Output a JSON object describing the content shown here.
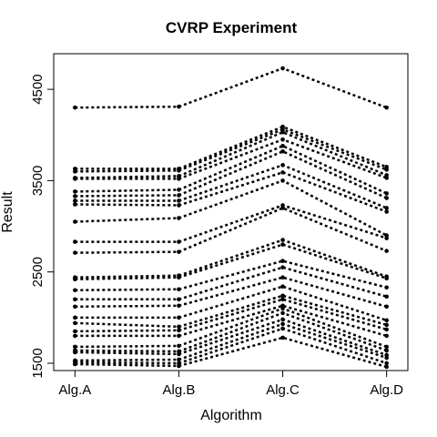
{
  "chart_data": {
    "type": "line",
    "title": "CVRP Experiment",
    "xlabel": "Algorithm",
    "ylabel": "Result",
    "categories": [
      "Alg.A",
      "Alg.B",
      "Alg.C",
      "Alg.D"
    ],
    "yticks": [
      1500,
      2500,
      3500,
      4500
    ],
    "ylim": [
      1420,
      4890
    ],
    "grid": false,
    "legend": "none",
    "series": [
      {
        "values": [
          4300,
          4310,
          4730,
          4300
        ]
      },
      {
        "values": [
          3630,
          3630,
          4090,
          3650
        ]
      },
      {
        "values": [
          3600,
          3610,
          4060,
          3620
        ]
      },
      {
        "values": [
          3530,
          3550,
          4030,
          3560
        ]
      },
      {
        "values": [
          3520,
          3520,
          3950,
          3530
        ]
      },
      {
        "values": [
          3380,
          3400,
          3880,
          3360
        ]
      },
      {
        "values": [
          3330,
          3340,
          3820,
          3310
        ]
      },
      {
        "values": [
          3280,
          3280,
          3670,
          3200
        ]
      },
      {
        "values": [
          3240,
          3230,
          3590,
          3160
        ]
      },
      {
        "values": [
          3050,
          3090,
          3500,
          2900
        ]
      },
      {
        "values": [
          2830,
          2830,
          3230,
          2870
        ]
      },
      {
        "values": [
          2710,
          2720,
          3200,
          2730
        ]
      },
      {
        "values": [
          2440,
          2460,
          2850,
          2450
        ]
      },
      {
        "values": [
          2420,
          2440,
          2800,
          2430
        ]
      },
      {
        "values": [
          2300,
          2310,
          2620,
          2330
        ]
      },
      {
        "values": [
          2200,
          2200,
          2550,
          2230
        ]
      },
      {
        "values": [
          2120,
          2130,
          2440,
          2120
        ]
      },
      {
        "values": [
          2000,
          2000,
          2340,
          1970
        ]
      },
      {
        "values": [
          1940,
          1900,
          2240,
          1920
        ]
      },
      {
        "values": [
          1850,
          1860,
          2200,
          1870
        ]
      },
      {
        "values": [
          1800,
          1800,
          2130,
          1800
        ]
      },
      {
        "values": [
          1680,
          1690,
          2100,
          1680
        ]
      },
      {
        "values": [
          1640,
          1630,
          2050,
          1640
        ]
      },
      {
        "values": [
          1620,
          1600,
          1980,
          1590
        ]
      },
      {
        "values": [
          1530,
          1540,
          1930,
          1560
        ]
      },
      {
        "values": [
          1510,
          1500,
          1880,
          1500
        ]
      },
      {
        "values": [
          1490,
          1470,
          1780,
          1460
        ]
      }
    ]
  }
}
